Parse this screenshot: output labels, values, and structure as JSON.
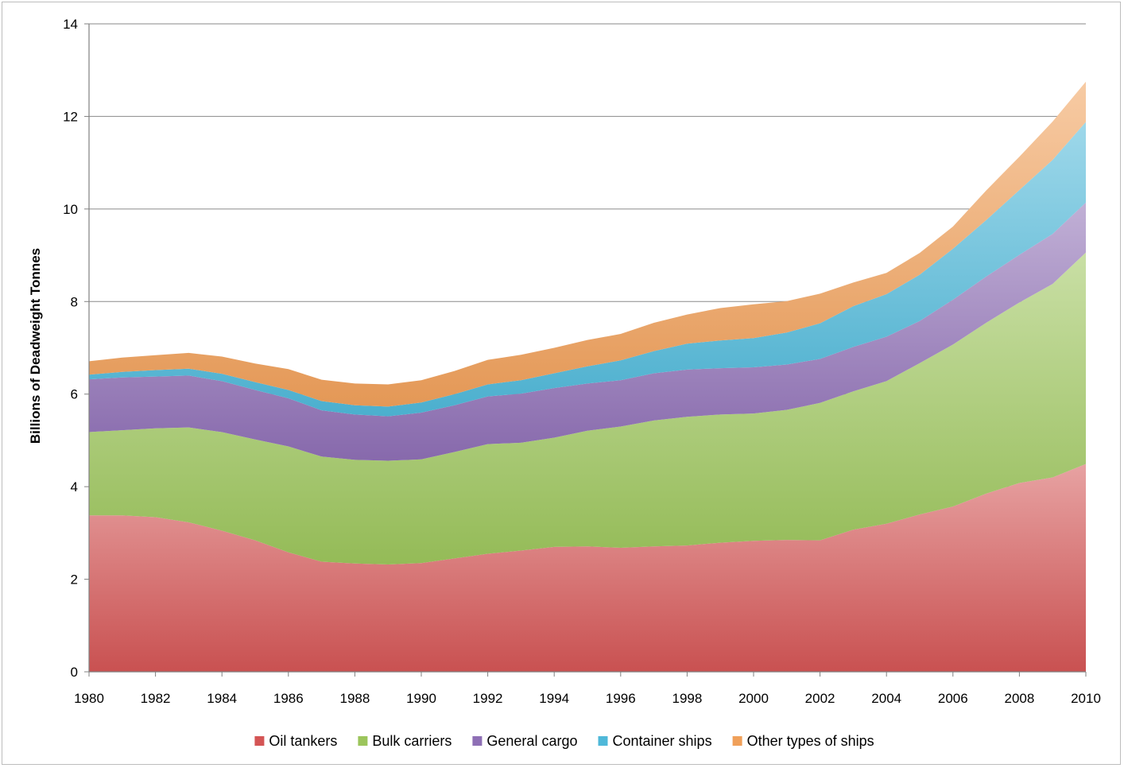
{
  "chart_data": {
    "type": "area",
    "stacked": true,
    "title": "",
    "xlabel": "",
    "ylabel": "Billions of Deadweight Tonnes",
    "ylim": [
      0,
      14
    ],
    "yticks": [
      "0",
      "2",
      "4",
      "6",
      "8",
      "10",
      "12",
      "14"
    ],
    "xlim": [
      1980,
      2010
    ],
    "xticks": [
      "1980",
      "1982",
      "1984",
      "1986",
      "1988",
      "1990",
      "1992",
      "1994",
      "1996",
      "1998",
      "2000",
      "2002",
      "2004",
      "2006",
      "2008",
      "2010"
    ],
    "grid": "horizontal",
    "legend_position": "bottom",
    "x": [
      1980,
      1981,
      1982,
      1983,
      1984,
      1985,
      1986,
      1987,
      1988,
      1989,
      1990,
      1991,
      1992,
      1993,
      1994,
      1995,
      1996,
      1997,
      1998,
      1999,
      2000,
      2001,
      2002,
      2003,
      2004,
      2005,
      2006,
      2007,
      2008,
      2009,
      2010
    ],
    "series": [
      {
        "name": "Oil tankers",
        "color": "#d45555",
        "values": [
          3.38,
          3.38,
          3.34,
          3.23,
          3.05,
          2.84,
          2.58,
          2.38,
          2.34,
          2.32,
          2.35,
          2.45,
          2.55,
          2.62,
          2.7,
          2.71,
          2.68,
          2.71,
          2.73,
          2.79,
          2.83,
          2.85,
          2.84,
          3.07,
          3.2,
          3.4,
          3.57,
          3.85,
          4.08,
          4.2,
          4.49
        ]
      },
      {
        "name": "Bulk carriers",
        "color": "#9cc55c",
        "values": [
          1.8,
          1.84,
          1.92,
          2.05,
          2.13,
          2.18,
          2.29,
          2.27,
          2.24,
          2.24,
          2.24,
          2.3,
          2.37,
          2.33,
          2.36,
          2.5,
          2.62,
          2.72,
          2.78,
          2.77,
          2.75,
          2.81,
          2.97,
          2.99,
          3.08,
          3.27,
          3.5,
          3.69,
          3.9,
          4.18,
          4.57
        ]
      },
      {
        "name": "General cargo",
        "color": "#8e6fb5",
        "values": [
          1.14,
          1.14,
          1.12,
          1.12,
          1.1,
          1.07,
          1.04,
          1.0,
          0.98,
          0.96,
          1.01,
          1.01,
          1.03,
          1.06,
          1.07,
          1.02,
          1.0,
          1.02,
          1.02,
          1.0,
          1.0,
          0.98,
          0.95,
          0.96,
          0.96,
          0.91,
          0.97,
          1.0,
          1.03,
          1.08,
          1.08
        ]
      },
      {
        "name": "Container ships",
        "color": "#4fb8d9",
        "values": [
          0.1,
          0.12,
          0.14,
          0.15,
          0.16,
          0.17,
          0.18,
          0.2,
          0.2,
          0.21,
          0.22,
          0.24,
          0.26,
          0.29,
          0.32,
          0.37,
          0.43,
          0.48,
          0.56,
          0.6,
          0.63,
          0.69,
          0.77,
          0.88,
          0.92,
          1.0,
          1.1,
          1.22,
          1.4,
          1.6,
          1.74
        ]
      },
      {
        "name": "Other types of ships",
        "color": "#f0a05a",
        "values": [
          0.29,
          0.31,
          0.32,
          0.34,
          0.37,
          0.4,
          0.45,
          0.46,
          0.47,
          0.48,
          0.48,
          0.5,
          0.53,
          0.55,
          0.55,
          0.57,
          0.57,
          0.61,
          0.63,
          0.7,
          0.73,
          0.68,
          0.64,
          0.51,
          0.46,
          0.47,
          0.48,
          0.64,
          0.72,
          0.83,
          0.87
        ]
      }
    ]
  }
}
